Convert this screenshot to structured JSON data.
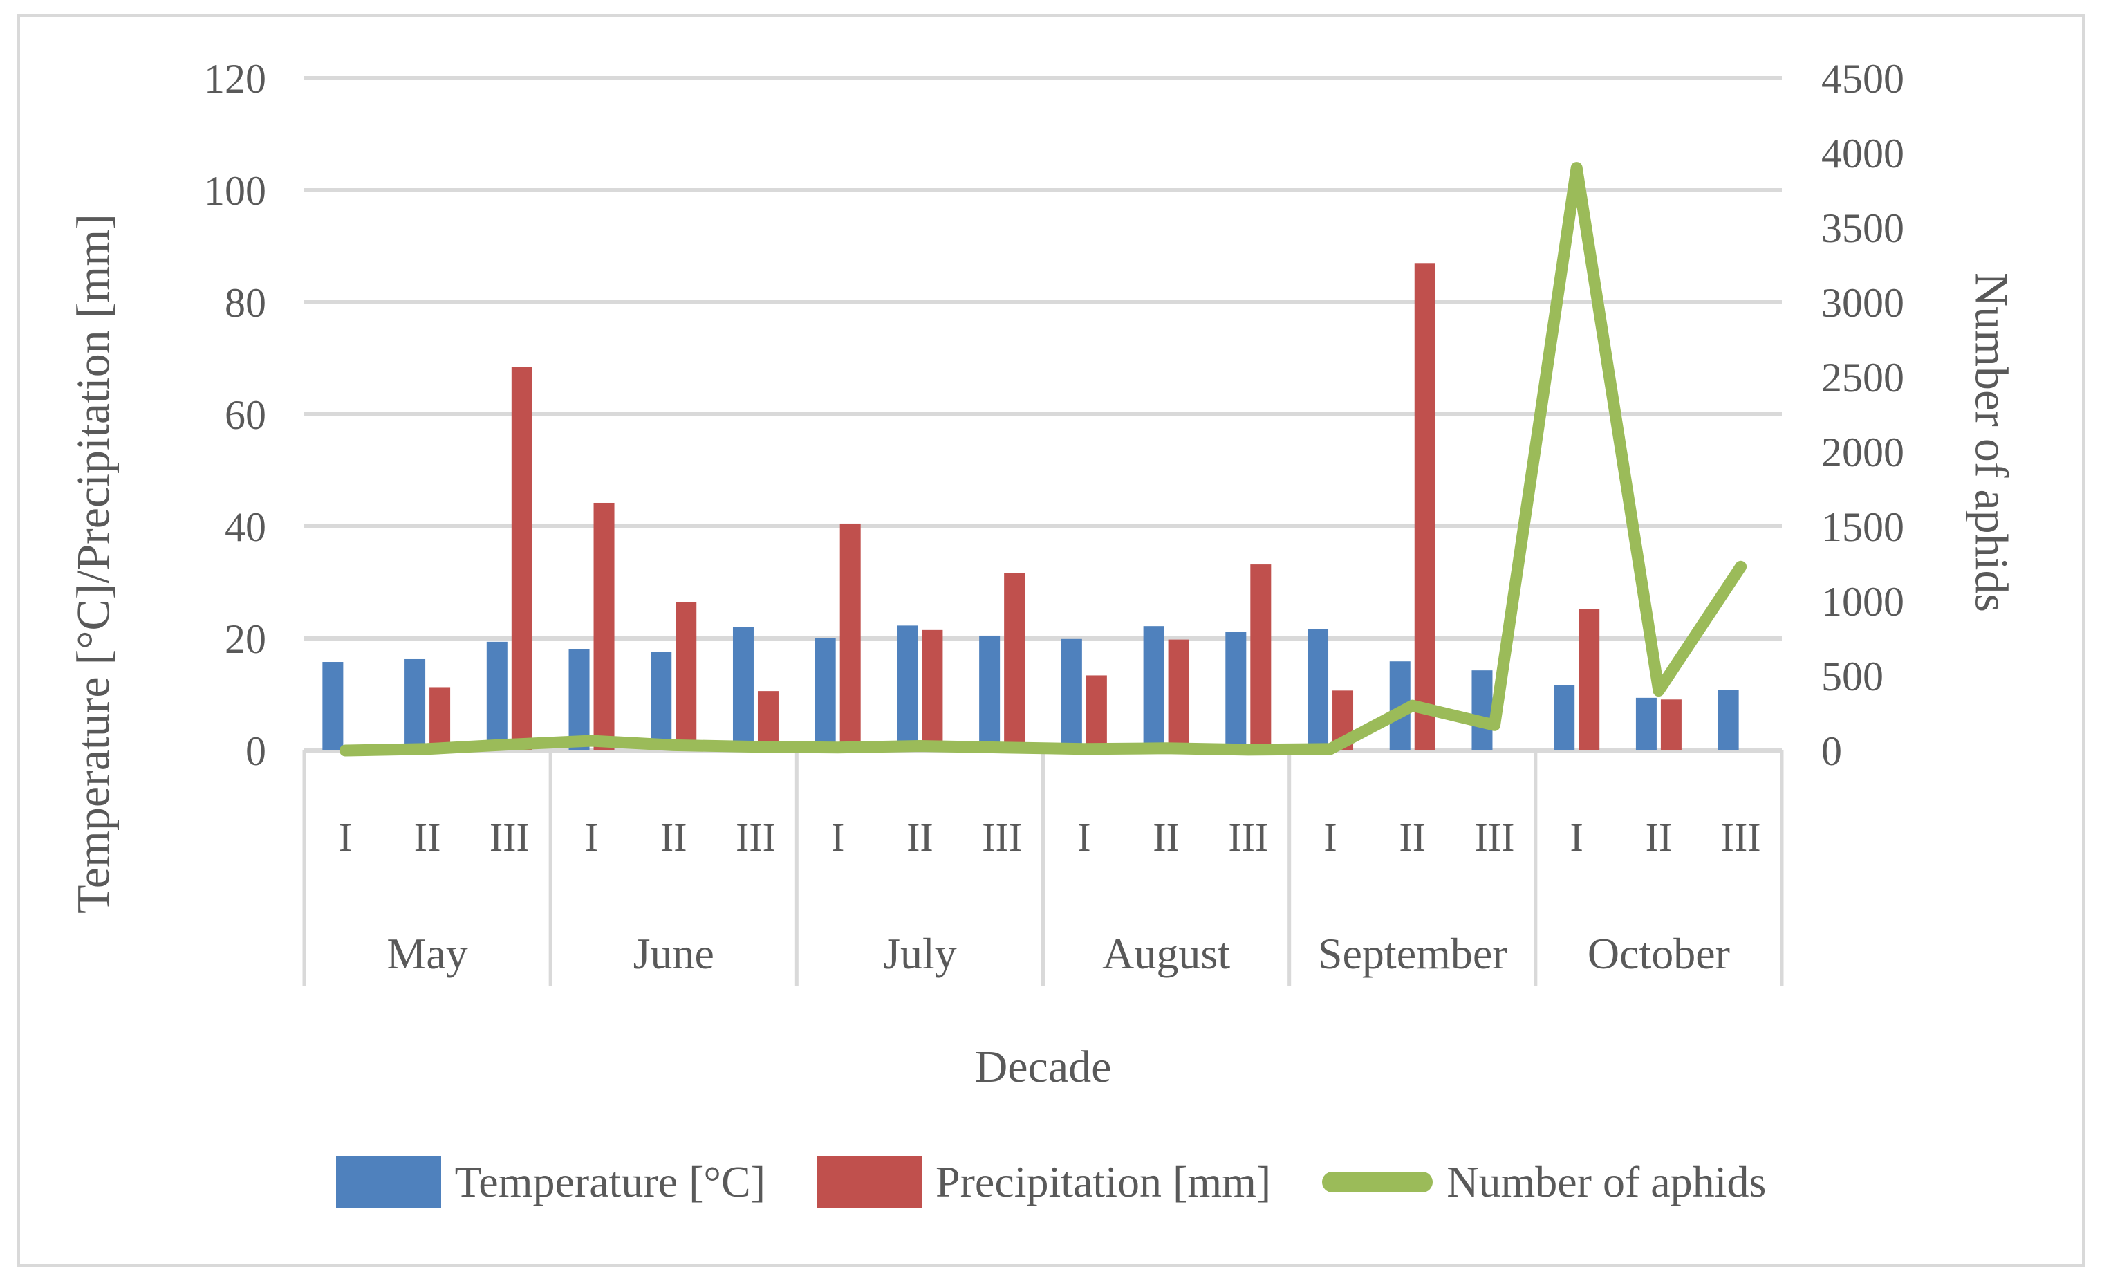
{
  "colors": {
    "temperature": "#4F81BD",
    "precipitation": "#C0504D",
    "aphids": "#9BBB59",
    "gridline": "#D9D9D9",
    "separator": "#D9D9D9",
    "text": "#595959",
    "frame": "#D9D9D9"
  },
  "chart_data": {
    "type": "bar",
    "subtype": "bar-line-combo-dual-axis",
    "months": [
      "May",
      "June",
      "July",
      "August",
      "September",
      "October"
    ],
    "decades": [
      "I",
      "II",
      "III"
    ],
    "categories": [
      "May I",
      "May II",
      "May III",
      "June I",
      "June II",
      "June III",
      "July I",
      "July II",
      "July III",
      "August I",
      "August II",
      "August III",
      "September I",
      "September II",
      "September III",
      "October I",
      "October II",
      "October III"
    ],
    "series": [
      {
        "name": "Temperature [°C]",
        "type": "bar",
        "axis": "left",
        "color": "#4F81BD",
        "values": [
          15.8,
          16.3,
          19.4,
          18.1,
          17.6,
          22.0,
          20.0,
          22.3,
          20.5,
          19.9,
          22.2,
          21.2,
          21.7,
          15.9,
          14.3,
          11.7,
          9.4,
          10.8
        ]
      },
      {
        "name": "Precipitation [mm]",
        "type": "bar",
        "axis": "left",
        "color": "#C0504D",
        "values": [
          0,
          11.3,
          68.5,
          44.2,
          26.5,
          10.6,
          40.5,
          21.5,
          31.7,
          13.4,
          19.8,
          33.2,
          10.7,
          87.0,
          0,
          25.2,
          9.1,
          0
        ]
      },
      {
        "name": "Number of aphids",
        "type": "line",
        "axis": "right",
        "color": "#9BBB59",
        "values": [
          0,
          10,
          40,
          65,
          35,
          25,
          20,
          30,
          20,
          10,
          15,
          5,
          10,
          300,
          170,
          3900,
          400,
          1230
        ]
      }
    ],
    "left_axis": {
      "title": "Temperature [°C]/Precipitation [mm]",
      "min": 0,
      "max": 120,
      "step": 20,
      "ticks": [
        "0",
        "20",
        "40",
        "60",
        "80",
        "100",
        "120"
      ]
    },
    "right_axis": {
      "title": "Number of aphids",
      "min": 0,
      "max": 4500,
      "step": 500,
      "ticks": [
        "0",
        "500",
        "1000",
        "1500",
        "2000",
        "2500",
        "3000",
        "3500",
        "4000",
        "4500"
      ]
    },
    "x_axis": {
      "title": "Decade"
    },
    "grid": true,
    "legend_position": "bottom"
  }
}
